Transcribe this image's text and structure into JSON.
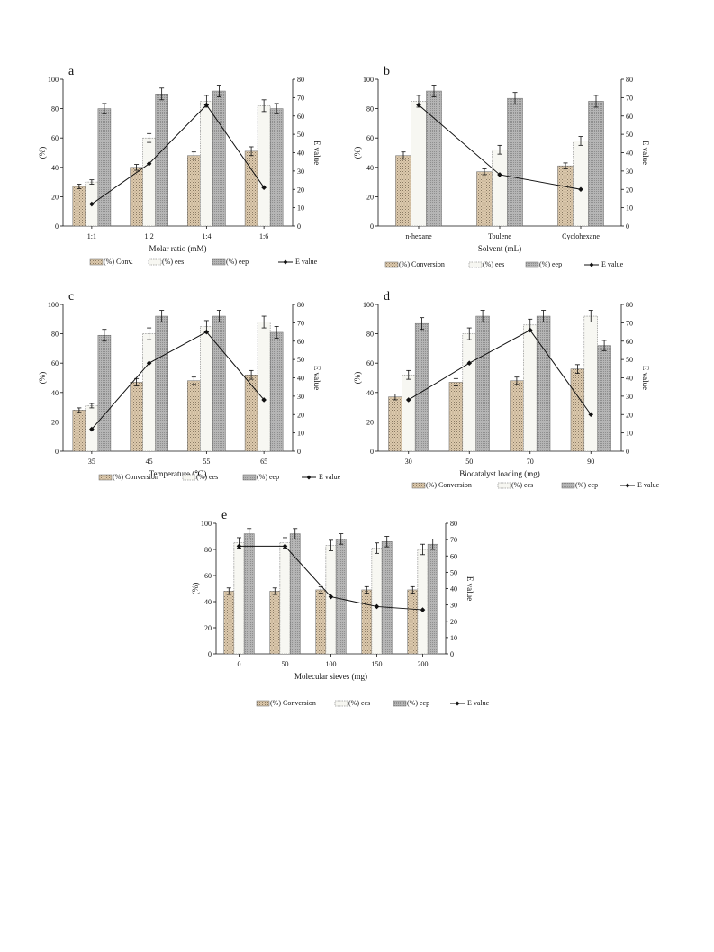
{
  "colors": {
    "conversion": "#dcc9ad",
    "ees": "#f7f7f2",
    "eep": "#b5b5b5",
    "evalue": "#111111"
  },
  "chart_data": [
    {
      "id": "a",
      "type": "bar",
      "panel_label": "a",
      "categories": [
        "1:1",
        "1:2",
        "1:4",
        "1:6"
      ],
      "xlabel": "Molar ratio (mM)",
      "ylabel": "(%)",
      "y2label": "E value",
      "ylim": [
        0,
        100
      ],
      "yticks": [
        0,
        20,
        40,
        60,
        80,
        100
      ],
      "y2lim": [
        0,
        80
      ],
      "y2ticks": [
        0,
        10,
        20,
        30,
        40,
        50,
        60,
        70,
        80
      ],
      "series": [
        {
          "name": "(%) Conv.",
          "key": "conversion",
          "values": [
            27,
            40,
            48,
            51
          ],
          "errors": [
            1.5,
            2,
            2.5,
            3
          ]
        },
        {
          "name": "(%) ees",
          "key": "ees",
          "values": [
            30,
            60,
            85,
            82
          ],
          "errors": [
            1.5,
            3,
            4,
            4
          ]
        },
        {
          "name": "(%) eep",
          "key": "eep",
          "values": [
            80,
            90,
            92,
            80
          ],
          "errors": [
            3.5,
            4,
            4,
            3.5
          ]
        }
      ],
      "line": {
        "name": "E value",
        "values": [
          12,
          34,
          66,
          21
        ]
      }
    },
    {
      "id": "b",
      "type": "bar",
      "panel_label": "b",
      "categories": [
        "n-hexane",
        "Toulene",
        "Cyclohexane"
      ],
      "xlabel": "Solvent (mL)",
      "ylabel": "(%)",
      "y2label": "E value",
      "ylim": [
        0,
        100
      ],
      "yticks": [
        0,
        20,
        40,
        60,
        80,
        100
      ],
      "y2lim": [
        0,
        80
      ],
      "y2ticks": [
        0,
        10,
        20,
        30,
        40,
        50,
        60,
        70,
        80
      ],
      "series": [
        {
          "name": "(%) Conversion",
          "key": "conversion",
          "values": [
            48,
            37,
            41
          ],
          "errors": [
            2.5,
            2,
            2
          ]
        },
        {
          "name": "(%) ees",
          "key": "ees",
          "values": [
            85,
            52,
            58
          ],
          "errors": [
            4,
            3,
            3
          ]
        },
        {
          "name": "(%) eep",
          "key": "eep",
          "values": [
            92,
            87,
            85
          ],
          "errors": [
            4,
            4,
            4
          ]
        }
      ],
      "line": {
        "name": "E value",
        "values": [
          66,
          28,
          20
        ]
      }
    },
    {
      "id": "c",
      "type": "bar",
      "panel_label": "c",
      "categories": [
        "35",
        "45",
        "55",
        "65"
      ],
      "xlabel": "Temperature (℃)",
      "ylabel": "(%)",
      "y2label": "E value",
      "ylim": [
        0,
        100
      ],
      "yticks": [
        0,
        20,
        40,
        60,
        80,
        100
      ],
      "y2lim": [
        0,
        80
      ],
      "y2ticks": [
        0,
        10,
        20,
        30,
        40,
        50,
        60,
        70,
        80
      ],
      "series": [
        {
          "name": "(%) Conversion",
          "key": "conversion",
          "values": [
            28,
            47,
            48,
            52
          ],
          "errors": [
            1.5,
            2.5,
            2.5,
            3
          ]
        },
        {
          "name": "(%) ees",
          "key": "ees",
          "values": [
            31,
            80,
            85,
            88
          ],
          "errors": [
            1.5,
            4,
            4,
            4
          ]
        },
        {
          "name": "(%) eep",
          "key": "eep",
          "values": [
            79,
            92,
            92,
            81
          ],
          "errors": [
            4,
            4,
            4,
            4
          ]
        }
      ],
      "line": {
        "name": "E value",
        "values": [
          12,
          48,
          65,
          28
        ]
      }
    },
    {
      "id": "d",
      "type": "bar",
      "panel_label": "d",
      "categories": [
        "30",
        "50",
        "70",
        "90"
      ],
      "xlabel": "Biocatalyst loading (mg)",
      "ylabel": "(%)",
      "y2label": "E value",
      "ylim": [
        0,
        100
      ],
      "yticks": [
        0,
        20,
        40,
        60,
        80,
        100
      ],
      "y2lim": [
        0,
        80
      ],
      "y2ticks": [
        0,
        10,
        20,
        30,
        40,
        50,
        60,
        70,
        80
      ],
      "series": [
        {
          "name": "(%) Conversion",
          "key": "conversion",
          "values": [
            37,
            47,
            48,
            56
          ],
          "errors": [
            2,
            2.5,
            2.5,
            3
          ]
        },
        {
          "name": "(%) ees",
          "key": "ees",
          "values": [
            52,
            80,
            86,
            92
          ],
          "errors": [
            3,
            4,
            4,
            4
          ]
        },
        {
          "name": "(%) eep",
          "key": "eep",
          "values": [
            87,
            92,
            92,
            72
          ],
          "errors": [
            4,
            4,
            4,
            3.5
          ]
        }
      ],
      "line": {
        "name": "E value",
        "values": [
          28,
          48,
          66,
          20
        ]
      }
    },
    {
      "id": "e",
      "type": "bar",
      "panel_label": "e",
      "categories": [
        "0",
        "50",
        "100",
        "150",
        "200"
      ],
      "xlabel": "Molecular sieves (mg)",
      "ylabel": "(%)",
      "y2label": "E value",
      "ylim": [
        0,
        100
      ],
      "yticks": [
        0,
        20,
        40,
        60,
        80,
        100
      ],
      "y2lim": [
        0,
        80
      ],
      "y2ticks": [
        0,
        10,
        20,
        30,
        40,
        50,
        60,
        70,
        80
      ],
      "series": [
        {
          "name": "(%) Conversion",
          "key": "conversion",
          "values": [
            48,
            48,
            49,
            49,
            49
          ],
          "errors": [
            2.5,
            2.5,
            2.5,
            2.5,
            2.5
          ]
        },
        {
          "name": "(%) ees",
          "key": "ees",
          "values": [
            85,
            85,
            83,
            81,
            80
          ],
          "errors": [
            4,
            4,
            4,
            4,
            4
          ]
        },
        {
          "name": "(%) eep",
          "key": "eep",
          "values": [
            92,
            92,
            88,
            86,
            84
          ],
          "errors": [
            4,
            4,
            4,
            4,
            4
          ]
        }
      ],
      "line": {
        "name": "E value",
        "values": [
          66,
          66,
          35,
          29,
          27
        ]
      }
    }
  ]
}
